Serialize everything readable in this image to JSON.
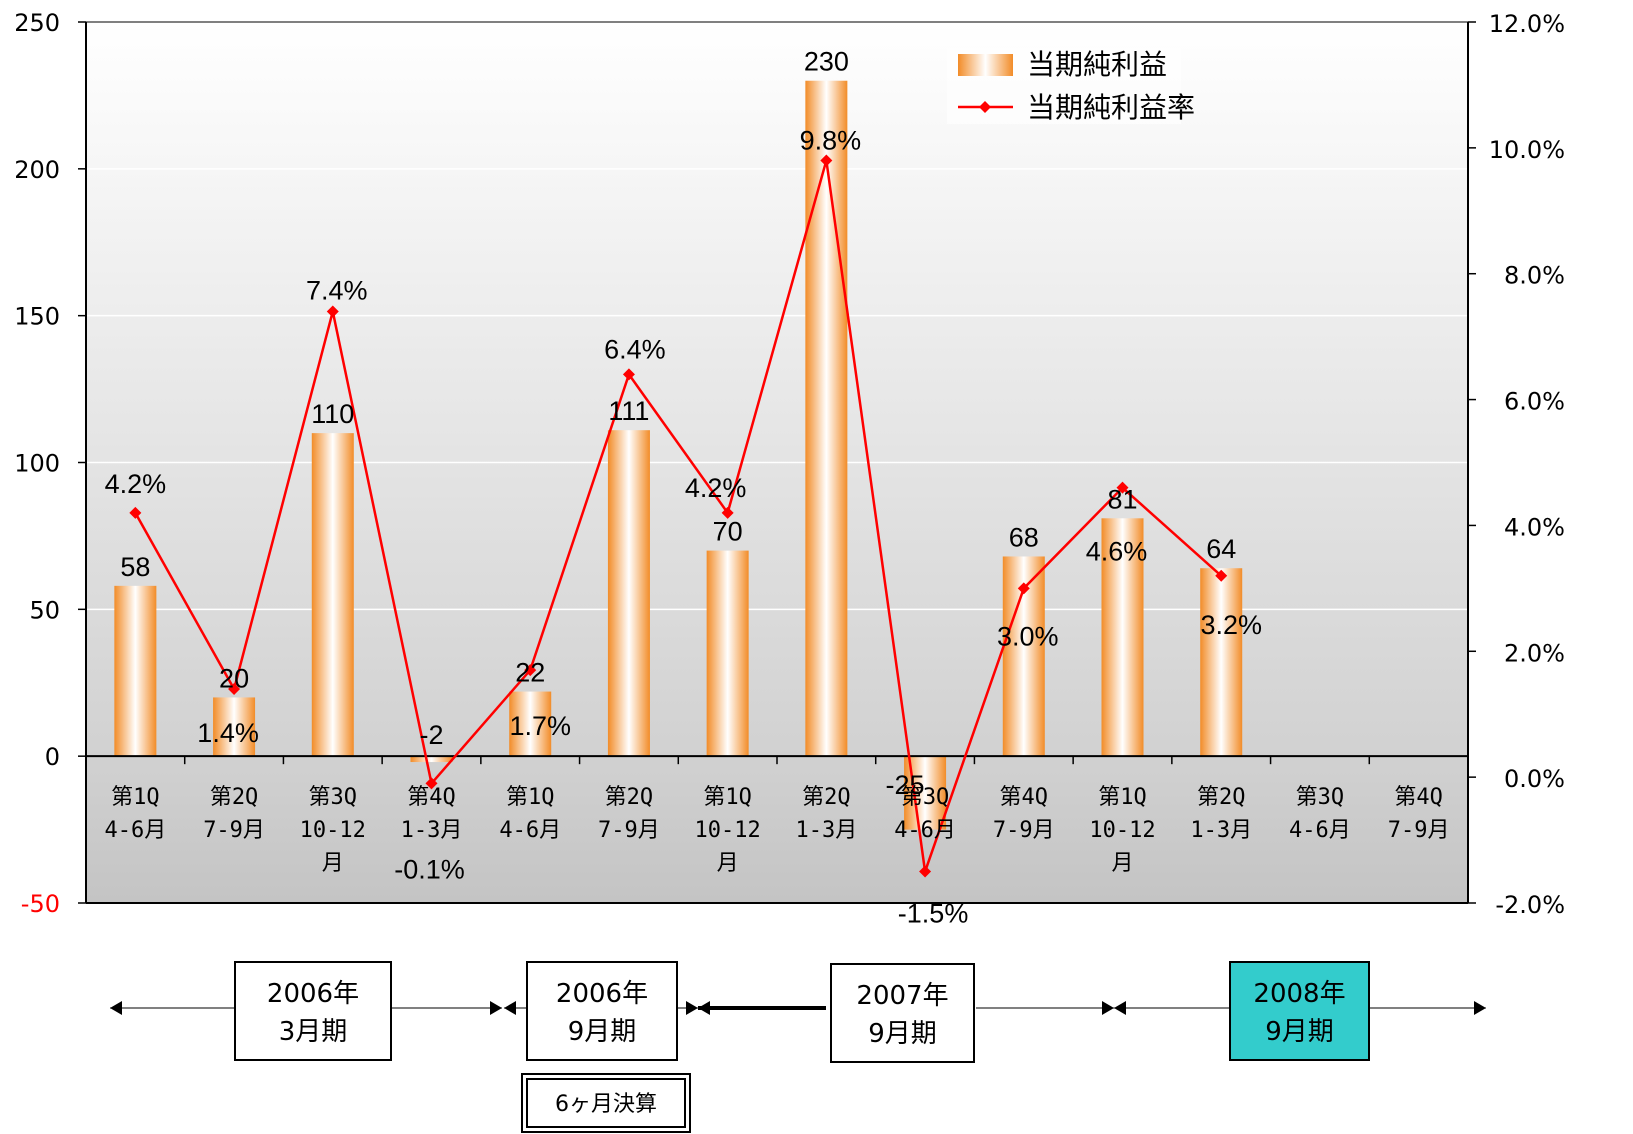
{
  "chart_data": {
    "type": "bar+line",
    "categories": [
      [
        "第1Q",
        "4-6月"
      ],
      [
        "第2Q",
        "7-9月"
      ],
      [
        "第3Q",
        "10-12",
        "月"
      ],
      [
        "第4Q",
        "1-3月"
      ],
      [
        "第1Q",
        "4-6月"
      ],
      [
        "第2Q",
        "7-9月"
      ],
      [
        "第1Q",
        "10-12",
        "月"
      ],
      [
        "第2Q",
        "1-3月"
      ],
      [
        "第3Q",
        "4-6月"
      ],
      [
        "第4Q",
        "7-9月"
      ],
      [
        "第1Q",
        "10-12",
        "月"
      ],
      [
        "第2Q",
        "1-3月"
      ],
      [
        "第3Q",
        "4-6月"
      ],
      [
        "第4Q",
        "7-9月"
      ]
    ],
    "series": [
      {
        "name": "当期純利益",
        "type": "bar",
        "axis": "left",
        "values": [
          58,
          20,
          110,
          -2,
          22,
          111,
          70,
          230,
          -25,
          68,
          81,
          64,
          null,
          null
        ],
        "labels": [
          "58",
          "20",
          "110",
          "-2",
          "22",
          "111",
          "70",
          "230",
          "-25",
          "68",
          "81",
          "64",
          "",
          ""
        ]
      },
      {
        "name": "当期純利益率",
        "type": "line",
        "axis": "right",
        "values": [
          4.2,
          1.4,
          7.4,
          -0.1,
          1.7,
          6.4,
          4.2,
          9.8,
          -1.5,
          3.0,
          4.6,
          3.2,
          null,
          null
        ],
        "labels": [
          "4.2%",
          "1.4%",
          "7.4%",
          "-0.1%",
          "1.7%",
          "6.4%",
          "4.2%",
          "9.8%",
          "-1.5%",
          "3.0%",
          "4.6%",
          "3.2%",
          "",
          ""
        ],
        "color": "#ff0000"
      }
    ],
    "left_axis": {
      "ylim": [
        -50,
        250
      ],
      "ticks": [
        250,
        200,
        150,
        100,
        50,
        0
      ],
      "tick_labels": [
        "250",
        "200",
        "150",
        "100",
        "50",
        "0"
      ],
      "negative_tick": -50,
      "negative_tick_label": "-50",
      "negative_tick_color": "#ff0000"
    },
    "right_axis": {
      "ylim": [
        -2.0,
        12.0
      ],
      "ticks": [
        12.0,
        10.0,
        8.0,
        6.0,
        4.0,
        2.0,
        0.0,
        -2.0
      ],
      "tick_labels": [
        "12.0%",
        "10.0%",
        "8.0%",
        "6.0%",
        "4.0%",
        "2.0%",
        "0.0%",
        "-2.0%"
      ]
    },
    "grid": true,
    "legend_position": "top-right-inside",
    "periods": [
      {
        "label": [
          "2006年",
          "3月期"
        ],
        "highlight": false
      },
      {
        "label": [
          "2006年",
          "9月期"
        ],
        "highlight": false
      },
      {
        "label": [
          "2007年",
          "9月期"
        ],
        "highlight": false
      },
      {
        "label": [
          "2008年",
          "9月期"
        ],
        "highlight": true
      }
    ],
    "note": "6ヶ月決算",
    "colors": {
      "bar": "#f39a3d",
      "line": "#ff0000",
      "highlight": "#33cccc"
    }
  }
}
